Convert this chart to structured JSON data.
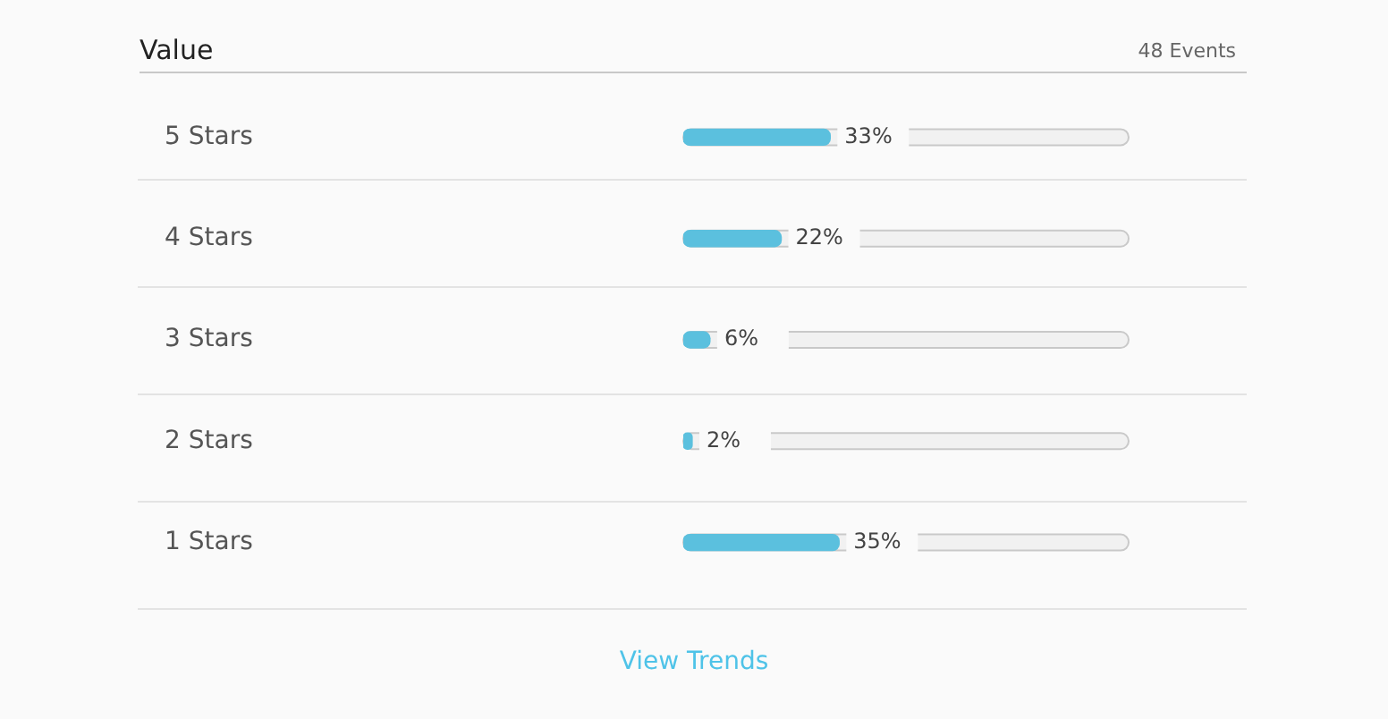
{
  "chart_data": {
    "type": "bar",
    "orientation": "horizontal",
    "title": "Value",
    "annotations": [
      "48 Events",
      "View Trends"
    ],
    "categories": [
      "5 Stars",
      "4 Stars",
      "3 Stars",
      "2 Stars",
      "1 Stars"
    ],
    "values": [
      33,
      22,
      6,
      2,
      35
    ],
    "value_labels": [
      "33%",
      "22%",
      "6%",
      "2%",
      "35%"
    ],
    "color": "#5bc0de",
    "xlim": [
      0,
      100
    ],
    "tick_labels": "y",
    "legend": false
  }
}
